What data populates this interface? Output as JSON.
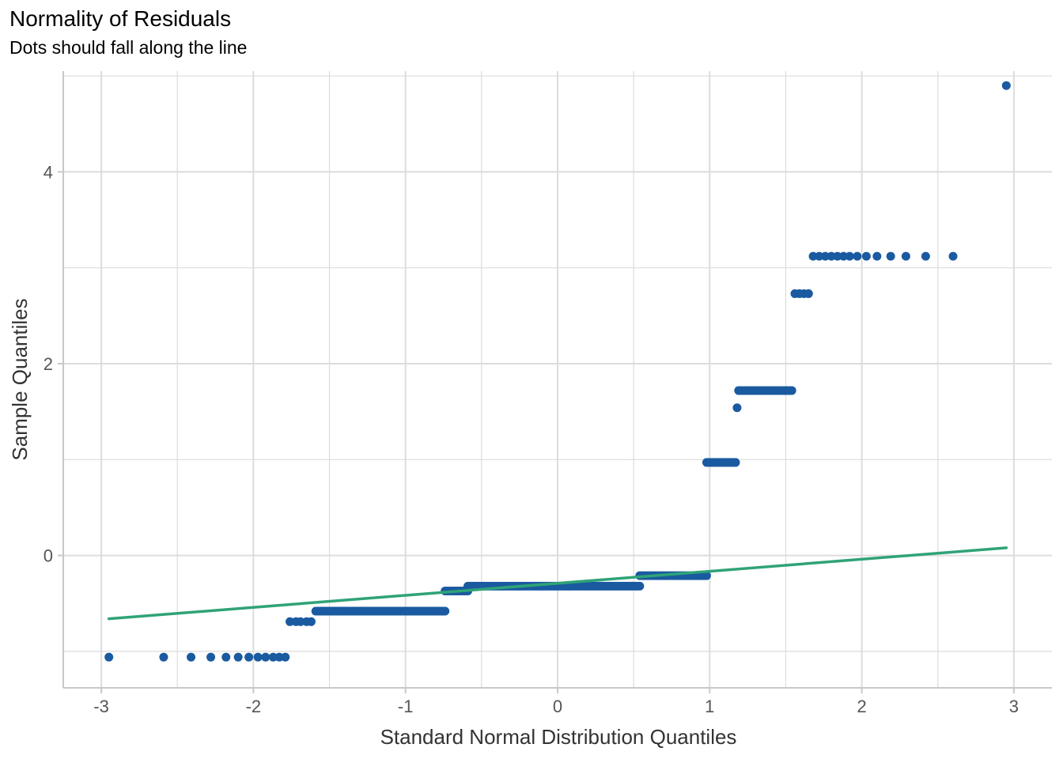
{
  "chart_data": {
    "type": "scatter",
    "title": "Normality of Residuals",
    "subtitle": "Dots should fall along the line",
    "xlabel": "Standard Normal Distribution Quantiles",
    "ylabel": "Sample Quantiles",
    "xlim": [
      -3.25,
      3.25
    ],
    "ylim": [
      -1.38,
      5.05
    ],
    "x_ticks": [
      -3,
      -2,
      -1,
      0,
      1,
      2,
      3
    ],
    "x_tick_labels": [
      "-3",
      "-2",
      "-1",
      "0",
      "1",
      "2",
      "3"
    ],
    "y_ticks": [
      0,
      2,
      4
    ],
    "y_tick_labels": [
      "0",
      "2",
      "4"
    ],
    "grid": true,
    "colors": {
      "points": "#1a5aa0",
      "line": "#2fa377",
      "grid": "#dcdcdc",
      "axis": "#c8c8c8"
    },
    "reference_line": {
      "x": [
        -2.95,
        2.95
      ],
      "y": [
        -0.66,
        0.08
      ]
    },
    "point_groups": [
      {
        "y": -1.06,
        "x": [
          -2.95,
          -2.59,
          -2.41,
          -2.28,
          -2.18,
          -2.1,
          -2.03,
          -1.97,
          -1.92,
          -1.87,
          -1.83,
          -1.79
        ]
      },
      {
        "y": -0.69,
        "x": [
          -1.76,
          -1.72,
          -1.69,
          -1.65,
          -1.62
        ]
      },
      {
        "y": -0.58,
        "x_range": [
          -1.59,
          -0.74
        ],
        "count": 70
      },
      {
        "y": -0.37,
        "x_range": [
          -0.74,
          -0.59
        ],
        "count": 12
      },
      {
        "y": -0.32,
        "x_range": [
          -0.59,
          0.54
        ],
        "count": 90
      },
      {
        "y": -0.21,
        "x_range": [
          0.54,
          0.98
        ],
        "count": 36
      },
      {
        "y": 0.97,
        "x_range": [
          0.98,
          1.17
        ],
        "count": 16
      },
      {
        "y": 1.54,
        "x": [
          1.18
        ]
      },
      {
        "y": 1.72,
        "x_range": [
          1.19,
          1.54
        ],
        "count": 28
      },
      {
        "y": 2.73,
        "x": [
          1.56,
          1.59,
          1.62,
          1.65
        ]
      },
      {
        "y": 3.12,
        "x": [
          1.68,
          1.72,
          1.76,
          1.8,
          1.84,
          1.88,
          1.92,
          1.97,
          2.03,
          2.1,
          2.19,
          2.29,
          2.42,
          2.6
        ]
      },
      {
        "y": 4.9,
        "x": [
          2.95
        ]
      }
    ]
  }
}
